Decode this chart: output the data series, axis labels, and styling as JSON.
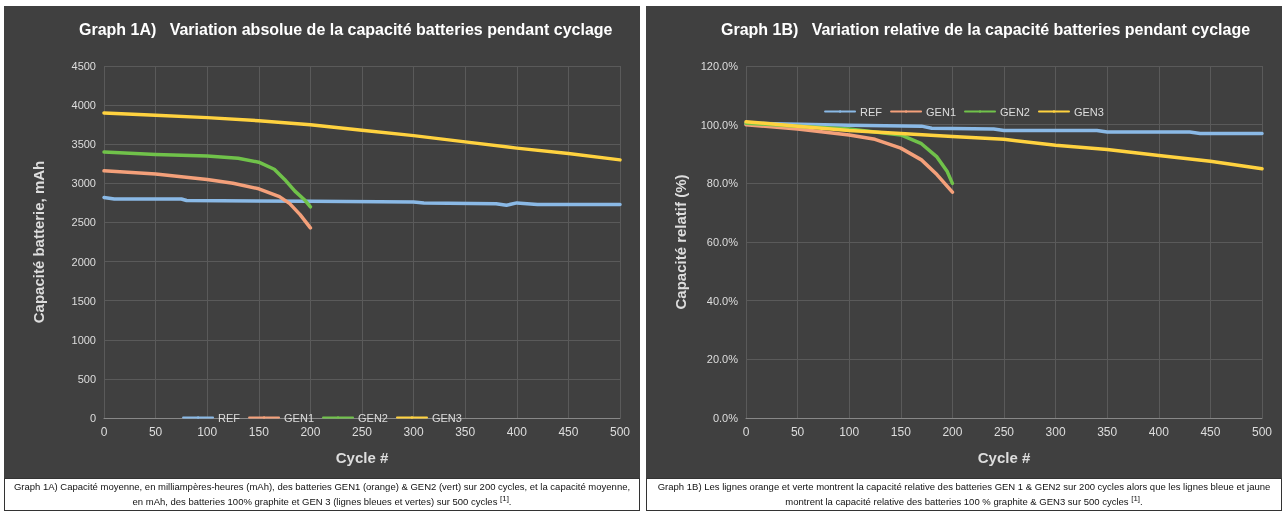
{
  "chart_data": [
    {
      "type": "line",
      "title": "Graph 1A)   Variation absolue de la capacité batteries pendant cyclage",
      "xlabel": "Cycle #",
      "ylabel": "Capacité batterie, mAh",
      "xlim": [
        0,
        500
      ],
      "xticks": [
        0,
        50,
        100,
        150,
        200,
        250,
        300,
        350,
        400,
        450,
        500
      ],
      "ylim": [
        0,
        4500
      ],
      "yticks": [
        0,
        500,
        1000,
        1500,
        2000,
        2500,
        3000,
        3500,
        4000,
        4500
      ],
      "grid": true,
      "legend": "bottom",
      "annotations": [
        "Graph 1A) Capacité moyenne, en milliampères-heures (mAh), des batteries GEN1 (orange) & GEN2 (vert) sur 200 cycles, et la capacité moyenne, en mAh, des batteries 100% graphite et GEN 3 (lignes bleues et vertes) sur 500 cycles $^{[1]}$."
      ],
      "series": [
        {
          "name": "REF",
          "color": "#8ab9e6",
          "x": [
            0,
            10,
            75,
            80,
            200,
            300,
            310,
            380,
            390,
            400,
            420,
            500
          ],
          "values": [
            2820,
            2800,
            2800,
            2780,
            2770,
            2760,
            2750,
            2740,
            2720,
            2750,
            2730,
            2730
          ]
        },
        {
          "name": "GEN1",
          "color": "#f4a07a",
          "x": [
            0,
            50,
            100,
            125,
            150,
            170,
            180,
            190,
            200
          ],
          "values": [
            3160,
            3120,
            3050,
            3000,
            2930,
            2830,
            2740,
            2600,
            2430
          ]
        },
        {
          "name": "GEN2",
          "color": "#70c24a",
          "x": [
            0,
            50,
            100,
            130,
            150,
            165,
            175,
            185,
            195,
            200
          ],
          "values": [
            3400,
            3370,
            3350,
            3320,
            3270,
            3180,
            3050,
            2900,
            2780,
            2700
          ]
        },
        {
          "name": "GEN3",
          "color": "#ffd23f",
          "x": [
            0,
            50,
            100,
            150,
            200,
            250,
            300,
            350,
            400,
            450,
            500
          ],
          "values": [
            3900,
            3870,
            3840,
            3800,
            3750,
            3680,
            3610,
            3530,
            3450,
            3380,
            3300
          ]
        }
      ]
    },
    {
      "type": "line",
      "title": "Graph 1B)   Variation relative de la capacité batteries pendant cyclage",
      "xlabel": "Cycle #",
      "ylabel": "Capacité relatif (%)",
      "xlim": [
        0,
        500
      ],
      "xticks": [
        0,
        50,
        100,
        150,
        200,
        250,
        300,
        350,
        400,
        450,
        500
      ],
      "ylim": [
        0,
        120
      ],
      "yticks": [
        {
          "value": 0,
          "label": "0.0%"
        },
        {
          "value": 20,
          "label": "20.0%"
        },
        {
          "value": 40,
          "label": "40.0%"
        },
        {
          "value": 60,
          "label": "60.0%"
        },
        {
          "value": 80,
          "label": "80.0%"
        },
        {
          "value": 100,
          "label": "100.0%"
        },
        {
          "value": 120,
          "label": "120.0%"
        }
      ],
      "grid": true,
      "legend": "top",
      "annotations": [
        "Graph 1B) Les lignes orange et verte montrent la capacité relative des batteries GEN 1 & GEN2 sur 200 cycles alors que les lignes bleue et jaune montrent la capacité relative des batteries 100 % graphite & GEN3 sur 500 cycles $^{[1]}$."
      ],
      "series": [
        {
          "name": "REF",
          "color": "#8ab9e6",
          "x": [
            0,
            100,
            170,
            180,
            240,
            250,
            340,
            350,
            430,
            440,
            500
          ],
          "values": [
            100.5,
            99.8,
            99.5,
            98.8,
            98.5,
            98,
            98,
            97.5,
            97.5,
            97,
            97
          ]
        },
        {
          "name": "GEN1",
          "color": "#f4a07a",
          "x": [
            0,
            50,
            100,
            125,
            150,
            170,
            185,
            200
          ],
          "values": [
            100,
            98.5,
            96.5,
            95,
            92,
            88,
            83,
            77
          ]
        },
        {
          "name": "GEN2",
          "color": "#70c24a",
          "x": [
            0,
            50,
            100,
            150,
            170,
            185,
            195,
            200
          ],
          "values": [
            100.5,
            99.5,
            98.5,
            96.5,
            93.5,
            89,
            84,
            80
          ]
        },
        {
          "name": "GEN3",
          "color": "#ffd23f",
          "x": [
            0,
            50,
            100,
            150,
            200,
            250,
            300,
            350,
            400,
            450,
            500
          ],
          "values": [
            101,
            99.5,
            98,
            97,
            96,
            95,
            93,
            91.5,
            89.5,
            87.5,
            85
          ]
        }
      ]
    }
  ]
}
